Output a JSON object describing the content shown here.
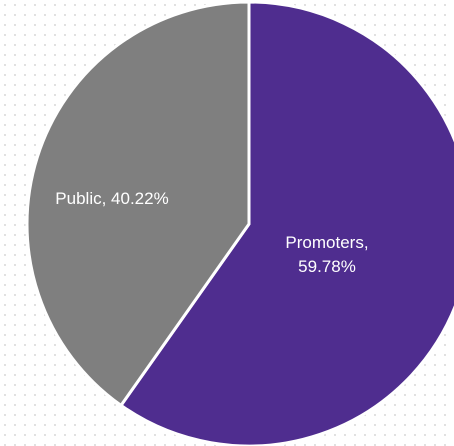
{
  "chart_data": {
    "type": "pie",
    "title": "",
    "legend": "none",
    "start": "top",
    "direction": "clockwise",
    "slices": [
      {
        "label": "Promoters",
        "value": 59.78,
        "color": "#4f2d8f",
        "label_lines": [
          "Promoters,",
          "59.78%"
        ]
      },
      {
        "label": "Public",
        "value": 40.22,
        "color": "#7f7f7f",
        "label_lines": [
          "Public, 40.22%"
        ]
      }
    ]
  }
}
